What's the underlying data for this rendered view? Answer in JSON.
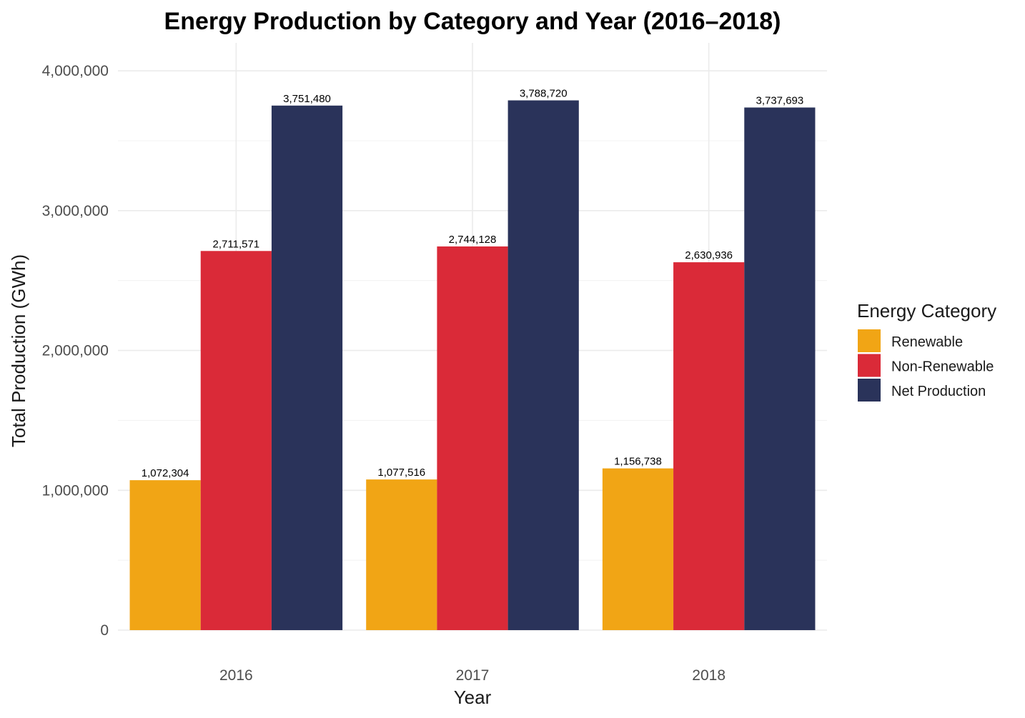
{
  "chart_data": {
    "type": "bar",
    "title": "Energy Production by Category and Year (2016–2018)",
    "xlabel": "Year",
    "ylabel": "Total Production (GWh)",
    "categories": [
      "2016",
      "2017",
      "2018"
    ],
    "series": [
      {
        "name": "Renewable",
        "color": "#F1A515",
        "values": [
          1072304,
          1077516,
          1156738
        ],
        "labels": [
          "1,072,304",
          "1,077,516",
          "1,156,738"
        ]
      },
      {
        "name": "Non-Renewable",
        "color": "#DA2A38",
        "values": [
          2711571,
          2744128,
          2630936
        ],
        "labels": [
          "2,711,571",
          "2,744,128",
          "2,630,936"
        ]
      },
      {
        "name": "Net Production",
        "color": "#2A335A",
        "values": [
          3751480,
          3788720,
          3737693
        ],
        "labels": [
          "3,751,480",
          "3,788,720",
          "3,737,693"
        ]
      }
    ],
    "ylim": [
      0,
      4200000
    ],
    "yticks": [
      0,
      1000000,
      2000000,
      3000000,
      4000000
    ],
    "ytick_labels": [
      "0",
      "1,000,000",
      "2,000,000",
      "3,000,000",
      "4,000,000"
    ],
    "grid": true,
    "legend": {
      "title": "Energy Category",
      "position": "right"
    }
  }
}
